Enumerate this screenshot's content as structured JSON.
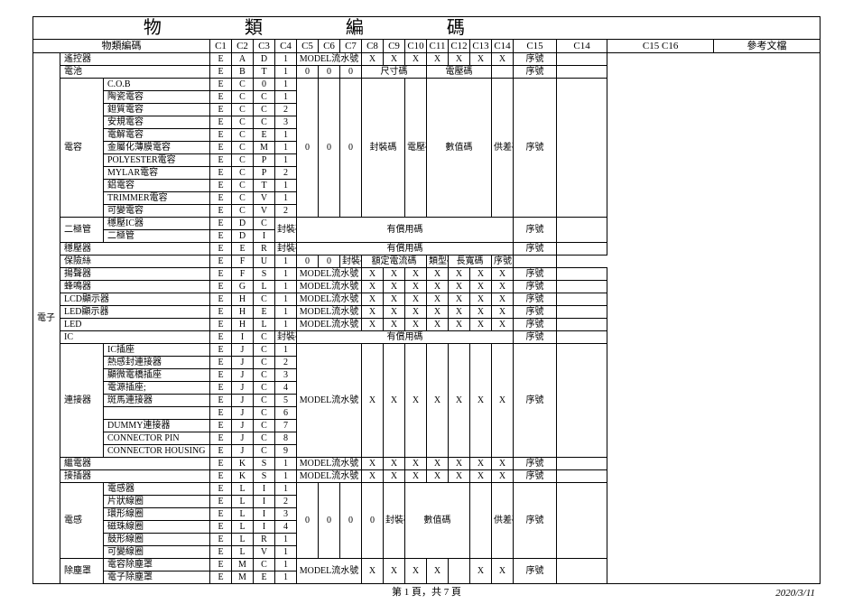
{
  "title": "物　類　編　碼",
  "header_name": "物類編碼",
  "header_ref": "參考文檔",
  "cols": [
    "C1",
    "C2",
    "C3",
    "C4",
    "C5",
    "C6",
    "C7",
    "C8",
    "C9",
    "C10",
    "C11",
    "C12",
    "C13",
    "C14",
    "C15",
    "C16"
  ],
  "tokens": {
    "model": "MODEL流水號",
    "xu": "序號",
    "chicun": "尺寸碼",
    "dianya": "電壓碼",
    "fengzhuang": "封裝碼",
    "fengzhuang_s": "封裝碼",
    "shuzhi": "數值碼",
    "gongcha": "供差碼",
    "youchang": "有償用碼",
    "eding": "額定電流碼",
    "leixing": "類型碼",
    "changshang": "長寬碼",
    "X": "X",
    "zero": "0",
    "one": "1"
  },
  "lvl0": "電子",
  "rows": [
    {
      "type": "simple",
      "lvl1_span": 1,
      "lvl1": "遙控器",
      "lvl2_span": 0,
      "c": [
        "E",
        "A",
        "D",
        "1"
      ],
      "mid": "model",
      "x": 9,
      "tail": "xu"
    },
    {
      "type": "batt",
      "lvl1_span": 1,
      "lvl1": "電池",
      "c": [
        "E",
        "B",
        "T",
        "1",
        "0",
        "0",
        "0"
      ]
    },
    {
      "type": "cap_first",
      "lvl2": "C.O.B",
      "c": [
        "E",
        "C",
        "0",
        "1"
      ]
    },
    {
      "type": "cap",
      "lvl2": "陶瓷電容",
      "c": [
        "E",
        "C",
        "C",
        "1"
      ]
    },
    {
      "type": "cap",
      "lvl2": "鉭質電容",
      "c": [
        "E",
        "C",
        "C",
        "2"
      ]
    },
    {
      "type": "cap",
      "lvl2": "安規電容",
      "c": [
        "E",
        "C",
        "C",
        "3"
      ]
    },
    {
      "type": "cap",
      "lvl2": "電解電容",
      "c": [
        "E",
        "C",
        "E",
        "1"
      ]
    },
    {
      "type": "cap",
      "lvl2": "金屬化薄膜電容",
      "c": [
        "E",
        "C",
        "M",
        "1"
      ]
    },
    {
      "type": "cap",
      "lvl2": "POLYESTER電容",
      "c": [
        "E",
        "C",
        "P",
        "1"
      ]
    },
    {
      "type": "cap",
      "lvl2": "MYLAR電容",
      "c": [
        "E",
        "C",
        "P",
        "2"
      ]
    },
    {
      "type": "cap",
      "lvl2": "鋁電容",
      "c": [
        "E",
        "C",
        "T",
        "1"
      ]
    },
    {
      "type": "cap",
      "lvl2": "TRIMMER電容",
      "c": [
        "E",
        "C",
        "V",
        "1"
      ]
    },
    {
      "type": "cap",
      "lvl2": "可變電容",
      "c": [
        "E",
        "C",
        "V",
        "2"
      ]
    },
    {
      "type": "diode_first",
      "lvl2": "穩壓IC器",
      "c": [
        "E",
        "D",
        "C",
        "封裝碼"
      ]
    },
    {
      "type": "diode",
      "lvl2": "二極管",
      "c": [
        "E",
        "D",
        "I"
      ]
    },
    {
      "type": "simple2",
      "lvl1_span": 1,
      "lvl1": "穩壓器",
      "c": [
        "E",
        "E",
        "R",
        "封裝碼"
      ],
      "mid": "youchang",
      "tail": "xu"
    },
    {
      "type": "fuse",
      "lvl1_span": 1,
      "lvl1": "保險絲",
      "c": [
        "E",
        "F",
        "U",
        "1",
        "0",
        "0"
      ]
    },
    {
      "type": "simple",
      "lvl1_span": 1,
      "lvl1": "揚聲器",
      "lvl2_span": 0,
      "c": [
        "E",
        "F",
        "S",
        "1"
      ],
      "mid": "model",
      "x": 9,
      "tail": "xu"
    },
    {
      "type": "simple",
      "lvl1_span": 1,
      "lvl1": "蜂鳴器",
      "lvl2_span": 0,
      "c": [
        "E",
        "G",
        "L",
        "1"
      ],
      "mid": "model",
      "x": 9,
      "tail": "xu"
    },
    {
      "type": "simple",
      "lvl1_span": 1,
      "lvl1": "LCD顯示器",
      "lvl2_span": 0,
      "c": [
        "E",
        "H",
        "C",
        "1"
      ],
      "mid": "model",
      "x": 9,
      "tail": "xu"
    },
    {
      "type": "simple",
      "lvl1_span": 1,
      "lvl1": "LED顯示器",
      "lvl2_span": 0,
      "c": [
        "E",
        "H",
        "E",
        "1"
      ],
      "mid": "model",
      "x": 9,
      "tail": "xu"
    },
    {
      "type": "simple",
      "lvl1_span": 1,
      "lvl1": "LED",
      "lvl2_span": 0,
      "c": [
        "E",
        "H",
        "L",
        "1"
      ],
      "mid": "model",
      "x": 9,
      "tail": "xu"
    },
    {
      "type": "simple2",
      "lvl1_span": 1,
      "lvl1": "IC",
      "c": [
        "E",
        "I",
        "C",
        "封裝碼"
      ],
      "mid": "youchang",
      "tail": "xu"
    },
    {
      "type": "conn_first",
      "lvl2": "IC插座",
      "c": [
        "E",
        "J",
        "C",
        "1"
      ]
    },
    {
      "type": "conn",
      "lvl2": "熱感封連接器",
      "c": [
        "E",
        "J",
        "C",
        "2"
      ]
    },
    {
      "type": "conn",
      "lvl2": "顯微電橋插座",
      "c": [
        "E",
        "J",
        "C",
        "3"
      ]
    },
    {
      "type": "conn",
      "lvl2": "電源插座;",
      "c": [
        "E",
        "J",
        "C",
        "4"
      ]
    },
    {
      "type": "conn",
      "lvl2": "斑馬連接器",
      "c": [
        "E",
        "J",
        "C",
        "5"
      ]
    },
    {
      "type": "conn",
      "lvl2": "",
      "c": [
        "E",
        "J",
        "C",
        "6"
      ]
    },
    {
      "type": "conn",
      "lvl2": "DUMMY連接器",
      "c": [
        "E",
        "J",
        "C",
        "7"
      ]
    },
    {
      "type": "conn",
      "lvl2": "CONNECTOR PIN",
      "c": [
        "E",
        "J",
        "C",
        "8"
      ]
    },
    {
      "type": "conn",
      "lvl2": "CONNECTOR HOUSING",
      "c": [
        "E",
        "J",
        "C",
        "9"
      ]
    },
    {
      "type": "simple",
      "lvl1_span": 1,
      "lvl1": "繼電器",
      "lvl2_span": 0,
      "c": [
        "E",
        "K",
        "S",
        "1"
      ],
      "mid": "model",
      "x": 9,
      "tail": "xu"
    },
    {
      "type": "simple",
      "lvl1_span": 1,
      "lvl1": "接插器",
      "lvl2_span": 0,
      "c": [
        "E",
        "K",
        "S",
        "1"
      ],
      "mid": "model",
      "x": 9,
      "tail": "xu"
    },
    {
      "type": "ind_first",
      "lvl2": "電感器",
      "c": [
        "E",
        "L",
        "I",
        "1"
      ]
    },
    {
      "type": "ind",
      "lvl2": "片狀線圈",
      "c": [
        "E",
        "L",
        "I",
        "2"
      ]
    },
    {
      "type": "ind",
      "lvl2": "環形線圈",
      "c": [
        "E",
        "L",
        "I",
        "3"
      ]
    },
    {
      "type": "ind",
      "lvl2": "磁珠線圈",
      "c": [
        "E",
        "L",
        "I",
        "4"
      ]
    },
    {
      "type": "ind",
      "lvl2": "鼓形線圈",
      "c": [
        "E",
        "L",
        "R",
        "1"
      ]
    },
    {
      "type": "ind",
      "lvl2": "可變線圈",
      "c": [
        "E",
        "L",
        "V",
        "1"
      ]
    },
    {
      "type": "mel_first",
      "lvl2": "電容除塵罩",
      "c": [
        "E",
        "M",
        "C",
        "1"
      ]
    },
    {
      "type": "mel",
      "lvl2": "電子除塵罩",
      "c": [
        "E",
        "M",
        "E",
        "1"
      ]
    }
  ],
  "footer_page": "第 1 頁，共 7 頁",
  "footer_date": "2020/3/11",
  "colors": {
    "border": "#000000",
    "bg": "#ffffff",
    "text": "#000000"
  }
}
